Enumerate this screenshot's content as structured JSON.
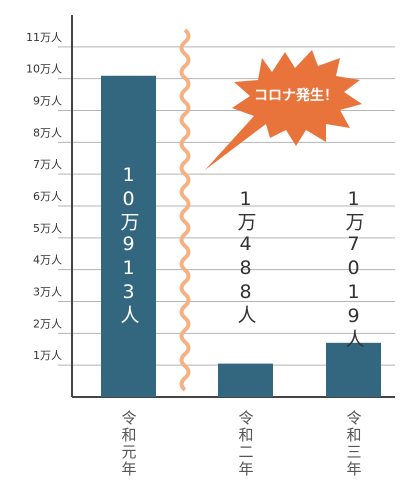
{
  "chart_data": {
    "type": "bar",
    "categories": [
      "令和元年",
      "令和二年",
      "令和三年"
    ],
    "values": [
      100913,
      10488,
      17019
    ],
    "value_labels": [
      "10万913人",
      "1万488人",
      "1万7019人"
    ],
    "color": "#336780",
    "ylim": [
      0,
      120000
    ],
    "yticks": [
      {
        "value": 10000,
        "label": "1万人"
      },
      {
        "value": 20000,
        "label": "2万人"
      },
      {
        "value": 30000,
        "label": "3万人"
      },
      {
        "value": 40000,
        "label": "4万人"
      },
      {
        "value": 50000,
        "label": "5万人"
      },
      {
        "value": 60000,
        "label": "6万人"
      },
      {
        "value": 70000,
        "label": "7万人"
      },
      {
        "value": 80000,
        "label": "8万人"
      },
      {
        "value": 90000,
        "label": "9万人"
      },
      {
        "value": 100000,
        "label": "10万人"
      },
      {
        "value": 110000,
        "label": "11万人"
      }
    ],
    "grid": true,
    "annotation": "コロナ発生！"
  }
}
